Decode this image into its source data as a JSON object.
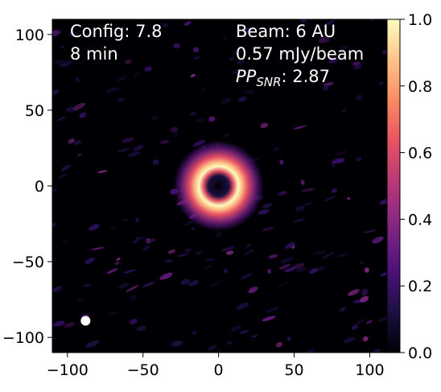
{
  "chart_data": {
    "type": "heatmap",
    "title": "",
    "xlabel": "",
    "ylabel": "",
    "xlim": [
      -110,
      120
    ],
    "ylim": [
      -110,
      110
    ],
    "x_ticks": [
      -100,
      -50,
      0,
      50,
      100
    ],
    "y_ticks": [
      100,
      50,
      0,
      -50,
      -100
    ],
    "x_tick_labels": [
      "−100",
      "−50",
      "0",
      "50",
      "100"
    ],
    "y_tick_labels": [
      "100",
      "50",
      "0",
      "−50",
      "−100"
    ],
    "colormap": "magma",
    "colorbar": {
      "range": [
        0.0,
        1.0
      ],
      "ticks": [
        1.0,
        0.8,
        0.6,
        0.4,
        0.2,
        0.0
      ],
      "tick_labels": [
        "1.0",
        "0.8",
        "0.6",
        "0.4",
        "0.2",
        "0.0"
      ]
    },
    "features": {
      "ring": {
        "center": [
          0,
          0
        ],
        "radius": 12,
        "peak": 1.0
      },
      "beam": {
        "center": [
          -88,
          -89
        ],
        "label": "Beam: 6 AU"
      }
    },
    "annotations": {
      "config": "Config: 7.8",
      "time": "8 min",
      "beam": "Beam: 6 AU",
      "sensitivity": "0.57 mJy/beam",
      "pp_main": "PP",
      "pp_sub": "SNR",
      "pp_value": ": 2.87"
    }
  },
  "colors": {
    "background": "#000004",
    "beam": "#ffffff",
    "magma_stops": [
      "#000004",
      "#1c1044",
      "#4f127b",
      "#812581",
      "#b5367a",
      "#e55064",
      "#fb8761",
      "#fec287",
      "#fcfdbf"
    ]
  }
}
